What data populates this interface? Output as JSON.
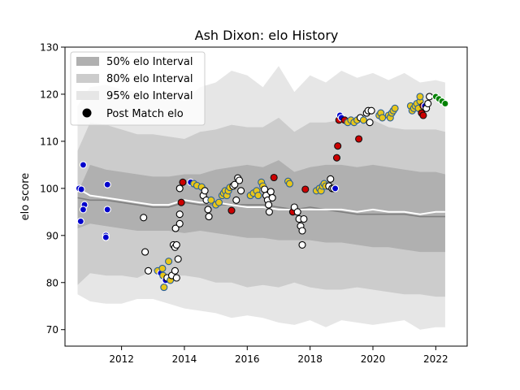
{
  "chart_data": {
    "type": "scatter",
    "title": "Ash Dixon: elo History",
    "xlabel": "",
    "ylabel": "elo score",
    "xlim": [
      2010.2,
      2023.0
    ],
    "ylim": [
      66.5,
      130
    ],
    "x_ticks": [
      2012,
      2014,
      2016,
      2018,
      2020,
      2022
    ],
    "x_tick_labels": [
      "2012",
      "2014",
      "2016",
      "2018",
      "2020",
      "2022"
    ],
    "y_ticks": [
      70,
      80,
      90,
      100,
      110,
      120,
      130
    ],
    "y_tick_labels": [
      "70",
      "80",
      "90",
      "100",
      "110",
      "120",
      "130"
    ],
    "grid": false,
    "legend": {
      "placement": "top-left",
      "entries": [
        "50% elo Interval",
        "80% elo Interval",
        "95% elo Interval",
        "Post Match elo"
      ]
    },
    "colors": {
      "band95": "#e6e6e6",
      "band80": "#cccccc",
      "band50": "#b0b0b0",
      "median_line": "#808080",
      "mean_line": "#ffffff"
    },
    "bands": {
      "x": [
        2010.6,
        2011.0,
        2011.5,
        2012.0,
        2012.5,
        2013.0,
        2013.5,
        2014.0,
        2014.5,
        2015.0,
        2015.5,
        2016.0,
        2016.5,
        2017.0,
        2017.5,
        2018.0,
        2018.5,
        2019.0,
        2019.5,
        2020.0,
        2020.5,
        2021.0,
        2021.5,
        2022.0,
        2022.3
      ],
      "p95_hi": [
        117.5,
        121.5,
        122.0,
        121.0,
        120.5,
        120.0,
        120.5,
        118.5,
        121.5,
        122.5,
        125.0,
        124.0,
        121.5,
        126.0,
        120.5,
        124.0,
        122.5,
        125.0,
        123.5,
        124.5,
        123.0,
        124.5,
        122.5,
        123.0,
        122.5
      ],
      "p80_hi": [
        108.0,
        114.0,
        113.5,
        112.5,
        111.5,
        111.5,
        111.0,
        110.5,
        112.0,
        112.5,
        113.5,
        113.0,
        113.0,
        115.0,
        112.0,
        114.0,
        114.0,
        114.5,
        113.5,
        114.5,
        113.0,
        112.5,
        112.5,
        112.5,
        112.0
      ],
      "p50_hi": [
        99.0,
        105.0,
        104.0,
        103.5,
        103.0,
        102.5,
        102.5,
        103.0,
        103.0,
        104.0,
        104.5,
        105.0,
        104.5,
        106.0,
        103.5,
        104.5,
        105.0,
        105.0,
        104.5,
        105.0,
        104.5,
        104.0,
        103.5,
        103.5,
        103.0
      ],
      "median": [
        98.0,
        97.5,
        97.5,
        97.0,
        96.5,
        96.0,
        96.0,
        97.0,
        96.5,
        96.5,
        96.5,
        96.5,
        96.5,
        96.0,
        95.5,
        96.0,
        95.5,
        95.0,
        94.5,
        94.5,
        94.5,
        94.5,
        94.0,
        94.0,
        94.0
      ],
      "mean": [
        100.0,
        98.5,
        98.0,
        97.5,
        97.0,
        96.5,
        96.5,
        97.5,
        97.0,
        97.0,
        96.5,
        96.0,
        96.0,
        95.5,
        95.5,
        95.5,
        95.5,
        95.5,
        95.0,
        95.5,
        95.0,
        95.0,
        94.5,
        95.0,
        95.0
      ],
      "p50_lo": [
        91.5,
        92.5,
        92.0,
        91.5,
        91.0,
        91.0,
        91.0,
        90.5,
        91.0,
        90.5,
        90.0,
        89.5,
        89.5,
        89.0,
        89.0,
        89.0,
        88.5,
        88.5,
        88.0,
        87.5,
        87.5,
        87.0,
        86.5,
        86.5,
        86.5
      ],
      "p80_lo": [
        79.5,
        82.0,
        81.5,
        81.5,
        81.0,
        82.5,
        81.5,
        81.5,
        81.0,
        80.0,
        80.0,
        79.0,
        79.5,
        79.0,
        80.0,
        79.0,
        78.5,
        78.5,
        79.0,
        78.5,
        78.0,
        77.5,
        77.5,
        77.0,
        77.0
      ],
      "p95_lo": [
        77.5,
        76.0,
        75.5,
        75.5,
        76.5,
        76.5,
        75.5,
        74.5,
        74.0,
        73.5,
        72.5,
        73.0,
        72.5,
        71.5,
        71.0,
        72.0,
        70.5,
        72.0,
        71.5,
        71.0,
        71.5,
        72.0,
        70.0,
        70.5,
        70.5
      ]
    },
    "points": [
      [
        2010.65,
        100.0,
        "blue"
      ],
      [
        2010.72,
        99.8,
        "blue"
      ],
      [
        2010.78,
        105.0,
        "blue"
      ],
      [
        2010.82,
        96.5,
        "blue"
      ],
      [
        2010.78,
        95.5,
        "blue"
      ],
      [
        2010.7,
        93.0,
        "blue"
      ],
      [
        2011.55,
        100.8,
        "blue"
      ],
      [
        2011.55,
        95.5,
        "blue"
      ],
      [
        2011.5,
        90.0,
        "blue"
      ],
      [
        2011.5,
        89.6,
        "blue"
      ],
      [
        2012.7,
        93.8,
        "white"
      ],
      [
        2012.75,
        86.5,
        "white"
      ],
      [
        2012.85,
        82.5,
        "white"
      ],
      [
        2013.15,
        82.5,
        "yellow"
      ],
      [
        2013.25,
        82.0,
        "blue"
      ],
      [
        2013.3,
        83.0,
        "yellow"
      ],
      [
        2013.32,
        81.5,
        "yellow"
      ],
      [
        2013.35,
        79.0,
        "yellow"
      ],
      [
        2013.4,
        80.5,
        "blue"
      ],
      [
        2013.45,
        81.0,
        "white"
      ],
      [
        2013.5,
        84.5,
        "yellow"
      ],
      [
        2013.55,
        80.5,
        "yellow"
      ],
      [
        2013.6,
        81.5,
        "white"
      ],
      [
        2013.65,
        88.0,
        "white"
      ],
      [
        2013.7,
        87.5,
        "white"
      ],
      [
        2013.72,
        91.5,
        "white"
      ],
      [
        2013.75,
        88.0,
        "white"
      ],
      [
        2013.8,
        85.0,
        "white"
      ],
      [
        2013.7,
        82.5,
        "white"
      ],
      [
        2013.75,
        81.0,
        "white"
      ],
      [
        2013.85,
        94.5,
        "white"
      ],
      [
        2013.85,
        92.5,
        "white"
      ],
      [
        2013.85,
        100.0,
        "white"
      ],
      [
        2013.9,
        97.0,
        "red"
      ],
      [
        2013.95,
        101.3,
        "red"
      ],
      [
        2014.2,
        101.3,
        "blue"
      ],
      [
        2014.3,
        101.0,
        "yellow"
      ],
      [
        2014.4,
        100.6,
        "yellow"
      ],
      [
        2014.55,
        100.3,
        "yellow"
      ],
      [
        2014.6,
        98.5,
        "white"
      ],
      [
        2014.65,
        99.5,
        "white"
      ],
      [
        2014.7,
        97.5,
        "white"
      ],
      [
        2014.75,
        95.5,
        "white"
      ],
      [
        2014.78,
        94.0,
        "white"
      ],
      [
        2014.85,
        97.5,
        "yellow"
      ],
      [
        2015.0,
        96.5,
        "yellow"
      ],
      [
        2015.1,
        97.0,
        "yellow"
      ],
      [
        2015.2,
        98.5,
        "yellow"
      ],
      [
        2015.25,
        99.0,
        "yellow"
      ],
      [
        2015.3,
        99.5,
        "yellow"
      ],
      [
        2015.35,
        98.5,
        "yellow"
      ],
      [
        2015.4,
        99.5,
        "yellow"
      ],
      [
        2015.45,
        100.2,
        "yellow"
      ],
      [
        2015.5,
        95.3,
        "red"
      ],
      [
        2015.55,
        100.5,
        "white"
      ],
      [
        2015.6,
        100.8,
        "white"
      ],
      [
        2015.65,
        97.5,
        "white"
      ],
      [
        2015.7,
        102.2,
        "white"
      ],
      [
        2015.75,
        101.7,
        "white"
      ],
      [
        2015.8,
        99.5,
        "white"
      ],
      [
        2016.1,
        98.5,
        "yellow"
      ],
      [
        2016.2,
        99.0,
        "yellow"
      ],
      [
        2016.3,
        99.5,
        "yellow"
      ],
      [
        2016.35,
        98.5,
        "yellow"
      ],
      [
        2016.45,
        101.3,
        "yellow"
      ],
      [
        2016.5,
        100.5,
        "yellow"
      ],
      [
        2016.55,
        99.8,
        "white"
      ],
      [
        2016.6,
        98.5,
        "white"
      ],
      [
        2016.65,
        97.5,
        "white"
      ],
      [
        2016.68,
        96.5,
        "white"
      ],
      [
        2016.7,
        95.0,
        "white"
      ],
      [
        2016.75,
        99.3,
        "white"
      ],
      [
        2016.8,
        98.0,
        "white"
      ],
      [
        2016.85,
        102.3,
        "red"
      ],
      [
        2017.3,
        101.5,
        "yellow"
      ],
      [
        2017.35,
        101.0,
        "yellow"
      ],
      [
        2017.45,
        95.0,
        "red"
      ],
      [
        2017.5,
        96.0,
        "white"
      ],
      [
        2017.6,
        95.0,
        "white"
      ],
      [
        2017.65,
        93.5,
        "white"
      ],
      [
        2017.7,
        92.0,
        "white"
      ],
      [
        2017.75,
        91.0,
        "white"
      ],
      [
        2017.75,
        88.0,
        "white"
      ],
      [
        2017.8,
        93.5,
        "white"
      ],
      [
        2017.85,
        99.8,
        "red"
      ],
      [
        2018.2,
        99.5,
        "yellow"
      ],
      [
        2018.3,
        100.0,
        "yellow"
      ],
      [
        2018.35,
        99.5,
        "yellow"
      ],
      [
        2018.4,
        100.5,
        "yellow"
      ],
      [
        2018.45,
        101.0,
        "yellow"
      ],
      [
        2018.5,
        100.5,
        "yellow"
      ],
      [
        2018.6,
        100.5,
        "white"
      ],
      [
        2018.65,
        102.0,
        "white"
      ],
      [
        2018.7,
        100.0,
        "white"
      ],
      [
        2018.75,
        100.0,
        "white"
      ],
      [
        2018.8,
        100.0,
        "blue"
      ],
      [
        2018.85,
        106.5,
        "red"
      ],
      [
        2018.88,
        109.0,
        "red"
      ],
      [
        2018.92,
        114.5,
        "red"
      ],
      [
        2018.95,
        115.5,
        "blue"
      ],
      [
        2019.0,
        115.0,
        "blue"
      ],
      [
        2019.1,
        114.5,
        "red"
      ],
      [
        2019.2,
        114.0,
        "yellow"
      ],
      [
        2019.3,
        114.5,
        "yellow"
      ],
      [
        2019.4,
        114.0,
        "yellow"
      ],
      [
        2019.5,
        114.5,
        "yellow"
      ],
      [
        2019.55,
        110.5,
        "red"
      ],
      [
        2019.6,
        115.0,
        "white"
      ],
      [
        2019.7,
        114.5,
        "yellow"
      ],
      [
        2019.8,
        116.0,
        "white"
      ],
      [
        2019.85,
        116.5,
        "white"
      ],
      [
        2019.9,
        114.0,
        "white"
      ],
      [
        2019.95,
        116.5,
        "white"
      ],
      [
        2020.2,
        115.5,
        "yellow"
      ],
      [
        2020.25,
        116.0,
        "yellow"
      ],
      [
        2020.3,
        115.0,
        "yellow"
      ],
      [
        2020.5,
        115.5,
        "yellow"
      ],
      [
        2020.55,
        115.0,
        "yellow"
      ],
      [
        2020.6,
        116.0,
        "yellow"
      ],
      [
        2020.65,
        116.5,
        "yellow"
      ],
      [
        2020.7,
        117.0,
        "yellow"
      ],
      [
        2021.2,
        117.5,
        "yellow"
      ],
      [
        2021.25,
        116.5,
        "yellow"
      ],
      [
        2021.3,
        117.0,
        "yellow"
      ],
      [
        2021.35,
        117.5,
        "yellow"
      ],
      [
        2021.4,
        118.0,
        "yellow"
      ],
      [
        2021.45,
        117.0,
        "yellow"
      ],
      [
        2021.5,
        118.5,
        "yellow"
      ],
      [
        2021.5,
        119.5,
        "yellow"
      ],
      [
        2021.55,
        116.0,
        "red"
      ],
      [
        2021.6,
        115.5,
        "red"
      ],
      [
        2021.6,
        117.5,
        "red"
      ],
      [
        2021.65,
        117.5,
        "blue"
      ],
      [
        2021.7,
        117.0,
        "white"
      ],
      [
        2021.75,
        118.0,
        "white"
      ],
      [
        2021.8,
        119.5,
        "white"
      ],
      [
        2022.0,
        119.5,
        "green"
      ],
      [
        2022.1,
        119.0,
        "green"
      ],
      [
        2022.2,
        118.5,
        "green"
      ],
      [
        2022.3,
        118.0,
        "green"
      ]
    ]
  }
}
